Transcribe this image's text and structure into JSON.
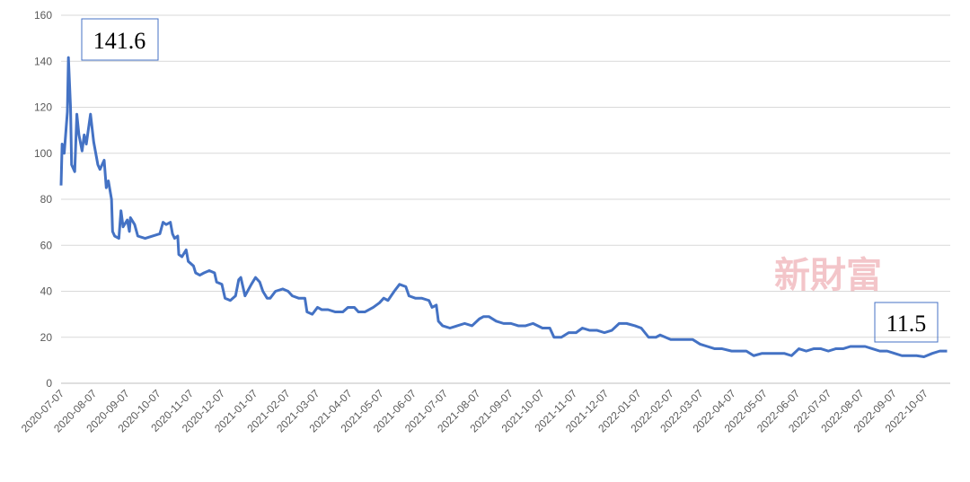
{
  "chart_data": {
    "type": "line",
    "x": [
      "2020-07-07",
      "2020-07-08",
      "2020-07-10",
      "2020-07-13",
      "2020-07-14",
      "2020-07-16",
      "2020-07-17",
      "2020-07-20",
      "2020-07-22",
      "2020-07-24",
      "2020-07-27",
      "2020-07-29",
      "2020-07-31",
      "2020-08-04",
      "2020-08-07",
      "2020-08-11",
      "2020-08-13",
      "2020-08-17",
      "2020-08-19",
      "2020-08-21",
      "2020-08-24",
      "2020-08-25",
      "2020-08-27",
      "2020-08-31",
      "2020-09-02",
      "2020-09-04",
      "2020-09-08",
      "2020-09-10",
      "2020-09-11",
      "2020-09-15",
      "2020-09-18",
      "2020-09-25",
      "2020-10-09",
      "2020-10-12",
      "2020-10-15",
      "2020-10-19",
      "2020-10-21",
      "2020-10-23",
      "2020-10-26",
      "2020-10-27",
      "2020-10-30",
      "2020-11-03",
      "2020-11-05",
      "2020-11-10",
      "2020-11-12",
      "2020-11-16",
      "2020-11-20",
      "2020-11-25",
      "2020-11-30",
      "2020-12-02",
      "2020-12-07",
      "2020-12-10",
      "2020-12-15",
      "2020-12-20",
      "2020-12-23",
      "2020-12-25",
      "2020-12-29",
      "2021-01-04",
      "2021-01-08",
      "2021-01-12",
      "2021-01-15",
      "2021-01-19",
      "2021-01-22",
      "2021-01-27",
      "2021-02-03",
      "2021-02-08",
      "2021-02-12",
      "2021-02-18",
      "2021-02-24",
      "2021-02-26",
      "2021-03-03",
      "2021-03-08",
      "2021-03-12",
      "2021-03-18",
      "2021-03-25",
      "2021-04-01",
      "2021-04-06",
      "2021-04-12",
      "2021-04-16",
      "2021-04-22",
      "2021-04-30",
      "2021-05-06",
      "2021-05-10",
      "2021-05-14",
      "2021-05-20",
      "2021-05-25",
      "2021-05-31",
      "2021-06-03",
      "2021-06-09",
      "2021-06-15",
      "2021-06-22",
      "2021-06-25",
      "2021-06-29",
      "2021-07-01",
      "2021-07-05",
      "2021-07-12",
      "2021-07-19",
      "2021-07-26",
      "2021-08-02",
      "2021-08-09",
      "2021-08-13",
      "2021-08-18",
      "2021-08-25",
      "2021-09-01",
      "2021-09-08",
      "2021-09-15",
      "2021-09-22",
      "2021-09-29",
      "2021-10-08",
      "2021-10-15",
      "2021-10-19",
      "2021-10-26",
      "2021-11-02",
      "2021-11-09",
      "2021-11-15",
      "2021-11-22",
      "2021-11-29",
      "2021-12-06",
      "2021-12-13",
      "2021-12-20",
      "2021-12-27",
      "2022-01-04",
      "2022-01-10",
      "2022-01-17",
      "2022-01-24",
      "2022-01-28",
      "2022-02-07",
      "2022-02-14",
      "2022-02-21",
      "2022-02-28",
      "2022-03-07",
      "2022-03-14",
      "2022-03-21",
      "2022-03-28",
      "2022-04-06",
      "2022-04-13",
      "2022-04-20",
      "2022-04-27",
      "2022-05-05",
      "2022-05-12",
      "2022-05-19",
      "2022-05-26",
      "2022-06-02",
      "2022-06-09",
      "2022-06-16",
      "2022-06-23",
      "2022-06-30",
      "2022-07-07",
      "2022-07-14",
      "2022-07-21",
      "2022-07-28",
      "2022-08-04",
      "2022-08-11",
      "2022-08-18",
      "2022-08-25",
      "2022-09-01",
      "2022-09-08",
      "2022-09-15",
      "2022-09-22",
      "2022-09-29",
      "2022-10-06",
      "2022-10-14",
      "2022-10-21",
      "2022-10-28"
    ],
    "values": [
      86,
      104,
      100,
      118,
      141.6,
      120,
      95,
      92,
      117,
      108,
      101,
      108,
      104,
      117,
      105,
      95,
      93,
      97,
      85,
      88,
      80,
      66,
      64,
      63,
      75,
      68,
      71,
      66,
      72,
      69,
      64,
      63,
      65,
      70,
      69,
      70,
      65,
      63,
      64,
      56,
      55,
      58,
      53,
      51,
      48,
      47,
      48,
      49,
      48,
      44,
      43,
      37,
      36,
      38,
      45,
      46,
      38,
      43,
      46,
      44,
      40,
      37,
      37,
      40,
      41,
      40,
      38,
      37,
      37,
      31,
      30,
      33,
      32,
      32,
      31,
      31,
      33,
      33,
      31,
      31,
      33,
      35,
      37,
      36,
      40,
      43,
      42,
      38,
      37,
      37,
      36,
      33,
      34,
      27,
      25,
      24,
      25,
      26,
      25,
      28,
      29,
      29,
      27,
      26,
      26,
      25,
      25,
      26,
      24,
      24,
      20,
      20,
      22,
      22,
      24,
      23,
      23,
      22,
      23,
      26,
      26,
      25,
      24,
      20,
      20,
      21,
      19,
      19,
      19,
      19,
      17,
      16,
      15,
      15,
      14,
      14,
      14,
      12,
      13,
      13,
      13,
      13,
      12,
      15,
      14,
      15,
      15,
      14,
      15,
      15,
      16,
      16,
      16,
      15,
      14,
      14,
      13,
      12,
      12,
      12,
      11.5,
      13,
      14,
      14
    ],
    "color": "#4472c4",
    "xlim": [
      "2020-07-07",
      "2022-10-31"
    ],
    "xticks": [
      "2020-07-07",
      "2020-08-07",
      "2020-09-07",
      "2020-10-07",
      "2020-11-07",
      "2020-12-07",
      "2021-01-07",
      "2021-02-07",
      "2021-03-07",
      "2021-04-07",
      "2021-05-07",
      "2021-06-07",
      "2021-07-07",
      "2021-08-07",
      "2021-09-07",
      "2021-10-07",
      "2021-11-07",
      "2021-12-07",
      "2022-01-07",
      "2022-02-07",
      "2022-03-07",
      "2022-04-07",
      "2022-05-07",
      "2022-06-07",
      "2022-07-07",
      "2022-08-07",
      "2022-09-07",
      "2022-10-07"
    ],
    "ylim": [
      0,
      160
    ],
    "yticks": [
      0,
      20,
      40,
      60,
      80,
      100,
      120,
      140,
      160
    ],
    "grid": true,
    "annotations": [
      "141.6",
      "11.5"
    ],
    "watermark": "新財富"
  }
}
